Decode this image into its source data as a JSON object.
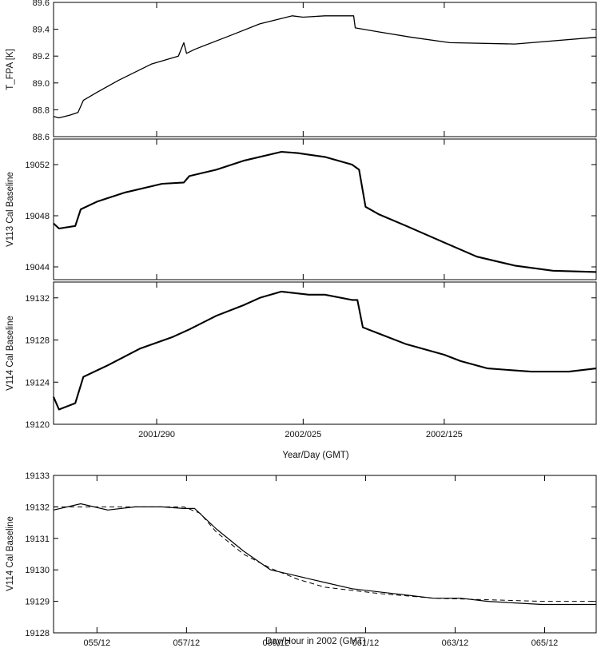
{
  "chart_data": [
    {
      "type": "line",
      "ylabel": "T_FPA [K]",
      "ylim": [
        88.6,
        89.6
      ],
      "yticks": [
        "88.6",
        "88.8",
        "89.0",
        "89.2",
        "89.4",
        "89.6"
      ],
      "xlim": [
        0,
        1
      ],
      "series": [
        {
          "x": [
            0,
            0.01,
            0.03,
            0.045,
            0.055,
            0.08,
            0.12,
            0.18,
            0.23,
            0.24,
            0.245,
            0.26,
            0.33,
            0.38,
            0.44,
            0.46,
            0.5,
            0.54,
            0.553,
            0.556,
            0.6,
            0.66,
            0.73,
            0.85,
            1.0
          ],
          "y": [
            88.75,
            88.74,
            88.76,
            88.78,
            88.87,
            88.93,
            89.02,
            89.14,
            89.2,
            89.3,
            89.22,
            89.25,
            89.36,
            89.44,
            89.5,
            89.49,
            89.5,
            89.5,
            89.5,
            89.41,
            89.38,
            89.34,
            89.3,
            89.29,
            89.34
          ]
        }
      ]
    },
    {
      "type": "line",
      "ylabel": "V113 Cal Baseline",
      "ylim": [
        19043,
        19054
      ],
      "yticks": [
        "19044",
        "19048",
        "19052"
      ],
      "xlim": [
        0,
        1
      ],
      "series": [
        {
          "x": [
            0,
            0.01,
            0.04,
            0.05,
            0.08,
            0.13,
            0.2,
            0.24,
            0.25,
            0.3,
            0.35,
            0.42,
            0.45,
            0.5,
            0.55,
            0.563,
            0.575,
            0.6,
            0.65,
            0.72,
            0.78,
            0.85,
            0.92,
            1.0
          ],
          "y": [
            19047.4,
            19047.0,
            19047.2,
            19048.5,
            19049.1,
            19049.8,
            19050.5,
            19050.6,
            19051.1,
            19051.6,
            19052.3,
            19053.0,
            19052.9,
            19052.6,
            19052.0,
            19051.6,
            19048.7,
            19048.1,
            19047.2,
            19045.9,
            19044.8,
            19044.1,
            19043.7,
            19043.6
          ]
        }
      ]
    },
    {
      "type": "line",
      "ylabel": "V114 Cal Baseline",
      "ylim": [
        19120,
        19133.5
      ],
      "yticks": [
        "19120",
        "19124",
        "19128",
        "19132"
      ],
      "xticks": [
        "2001/290",
        "2002/025",
        "2002/125"
      ],
      "xlabel": "Year/Day (GMT)",
      "xlim": [
        0,
        1
      ],
      "series": [
        {
          "x": [
            0,
            0.01,
            0.04,
            0.055,
            0.1,
            0.16,
            0.22,
            0.25,
            0.3,
            0.35,
            0.38,
            0.42,
            0.47,
            0.5,
            0.55,
            0.56,
            0.57,
            0.6,
            0.65,
            0.72,
            0.75,
            0.8,
            0.88,
            0.95,
            1.0
          ],
          "y": [
            19122.6,
            19121.4,
            19122.0,
            19124.5,
            19125.6,
            19127.2,
            19128.3,
            19129.0,
            19130.3,
            19131.3,
            19132.0,
            19132.6,
            19132.3,
            19132.3,
            19131.8,
            19131.8,
            19129.2,
            19128.6,
            19127.6,
            19126.6,
            19126.0,
            19125.3,
            19125.0,
            19125.0,
            19125.3
          ]
        }
      ]
    },
    {
      "type": "line",
      "ylabel": "V114 Cal Baseline",
      "ylim": [
        19128,
        19133
      ],
      "yticks": [
        "19128",
        "19129",
        "19130",
        "19131",
        "19132",
        "19133"
      ],
      "xticks": [
        "055/12",
        "057/12",
        "059/12",
        "061/12",
        "063/12",
        "065/12"
      ],
      "xlabel": "Day/Hour in 2002 (GMT)",
      "xlim": [
        0,
        1
      ],
      "series": [
        {
          "x": [
            0,
            0.05,
            0.1,
            0.15,
            0.2,
            0.24,
            0.26,
            0.3,
            0.35,
            0.4,
            0.45,
            0.5,
            0.55,
            0.6,
            0.65,
            0.7,
            0.75,
            0.8,
            0.85,
            0.9,
            0.95,
            1.0
          ],
          "y": [
            19131.9,
            19132.1,
            19131.9,
            19132.0,
            19132.0,
            19131.95,
            19131.95,
            19131.3,
            19130.6,
            19130.0,
            19129.8,
            19129.6,
            19129.4,
            19129.3,
            19129.2,
            19129.1,
            19129.1,
            19129.0,
            19128.95,
            19128.9,
            19128.9,
            19128.9
          ],
          "style": "solid"
        },
        {
          "x": [
            0,
            0.24,
            0.27,
            0.3,
            0.35,
            0.4,
            0.45,
            0.5,
            0.6,
            0.7,
            0.8,
            0.9,
            1.0
          ],
          "y": [
            19132.0,
            19132.0,
            19131.8,
            19131.2,
            19130.5,
            19130.05,
            19129.7,
            19129.45,
            19129.25,
            19129.1,
            19129.05,
            19129.0,
            19129.0
          ],
          "style": "dashed"
        }
      ]
    }
  ]
}
